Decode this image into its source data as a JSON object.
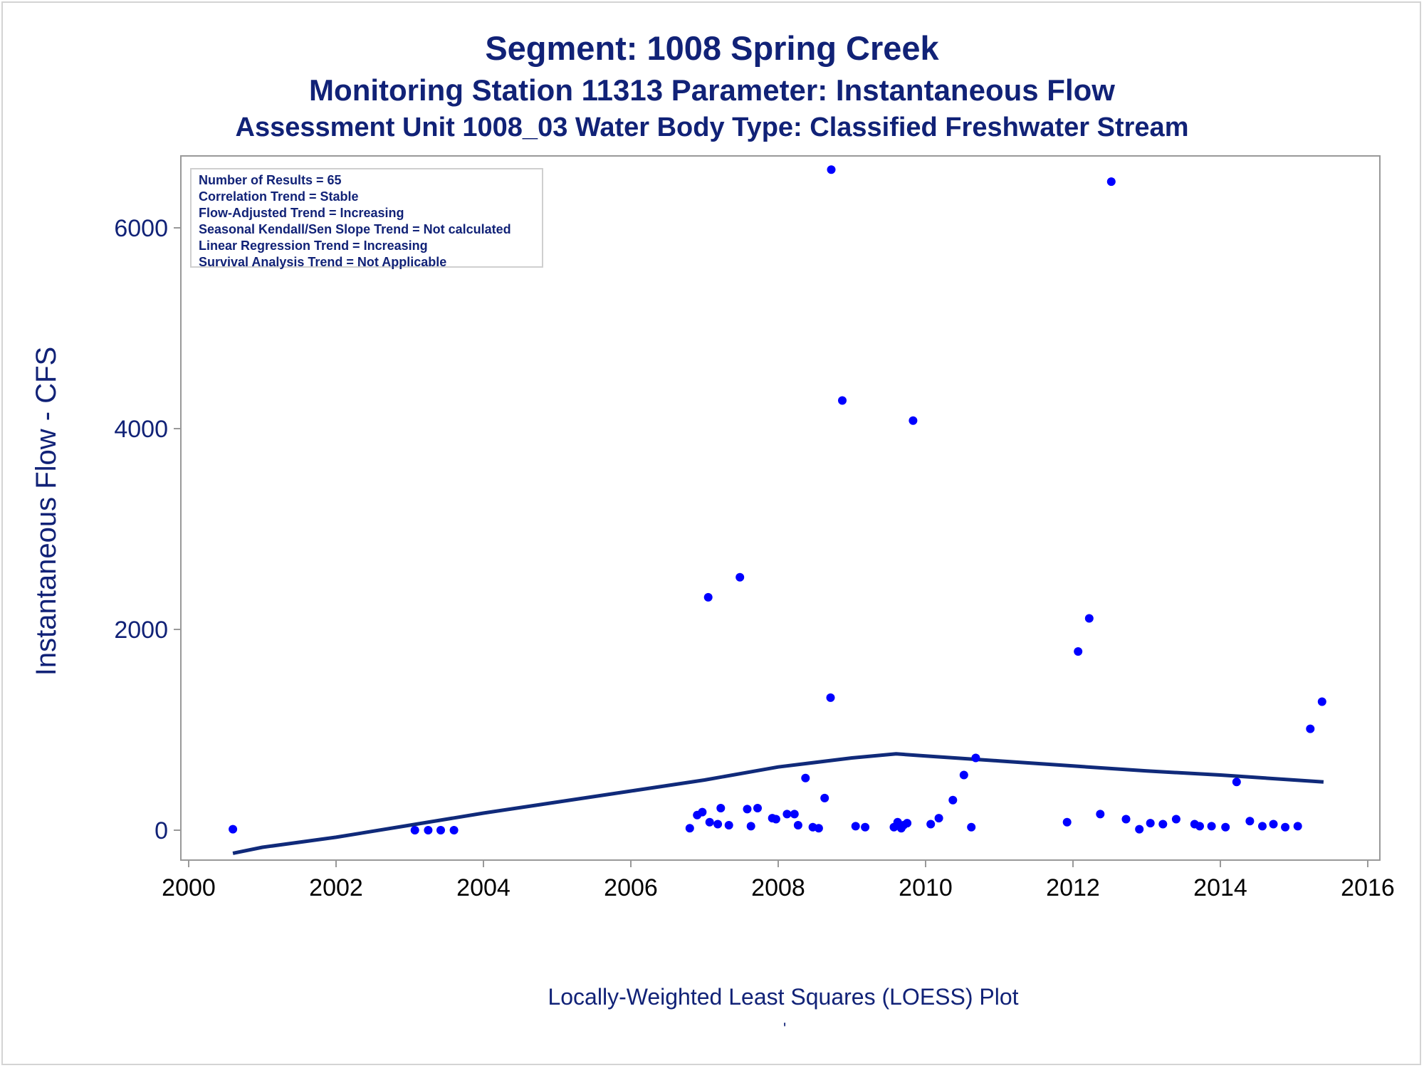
{
  "titles": {
    "line1": "Segment: 1008  Spring Creek",
    "line2": "Monitoring Station 11313 Parameter: Instantaneous Flow",
    "line3": "Assessment Unit 1008_03   Water Body Type: Classified Freshwater Stream"
  },
  "stats": [
    "Number of Results = 65",
    "Correlation Trend = Stable",
    "Flow-Adjusted Trend = Increasing",
    "Seasonal Kendall/Sen Slope Trend = Not calculated",
    "Linear Regression Trend = Increasing",
    "Survival Analysis Trend = Not Applicable"
  ],
  "caption": "Locally-Weighted Least Squares (LOESS) Plot",
  "caption_mark": "'",
  "colors": {
    "points": "#0000ff",
    "loess": "#102a7a",
    "text": "#112277",
    "axis": "#999999"
  },
  "chart_data": {
    "type": "scatter",
    "ylabel": "Instantaneous Flow - CFS",
    "xlabel": "",
    "xlim": [
      2000,
      2016
    ],
    "ylim": [
      -300,
      6700
    ],
    "x_ticks": [
      2000,
      2002,
      2004,
      2006,
      2008,
      2010,
      2012,
      2014,
      2016
    ],
    "y_ticks": [
      0,
      2000,
      4000,
      6000
    ],
    "grid": false,
    "series": [
      {
        "kind": "points",
        "x": [
          2000.6,
          2003.07,
          2003.25,
          2003.42,
          2003.6,
          2006.8,
          2006.9,
          2006.97,
          2007.07,
          2007.05,
          2007.18,
          2007.22,
          2007.33,
          2007.48,
          2007.58,
          2007.63,
          2007.72,
          2007.92,
          2007.97,
          2008.12,
          2008.22,
          2008.27,
          2008.37,
          2008.47,
          2008.55,
          2008.63,
          2008.72,
          2008.71,
          2008.87,
          2009.05,
          2009.18,
          2009.57,
          2009.62,
          2009.67,
          2009.7,
          2009.75,
          2009.83,
          2010.07,
          2010.18,
          2010.37,
          2010.52,
          2010.62,
          2010.68,
          2011.92,
          2012.07,
          2012.22,
          2012.37,
          2012.52,
          2012.72,
          2012.9,
          2013.05,
          2013.22,
          2013.4,
          2013.65,
          2013.72,
          2013.88,
          2014.07,
          2014.22,
          2014.4,
          2014.57,
          2014.72,
          2014.88,
          2015.05,
          2015.22,
          2015.38
        ],
        "y": [
          10,
          0,
          0,
          0,
          0,
          20,
          150,
          180,
          80,
          2320,
          60,
          220,
          50,
          2520,
          210,
          40,
          220,
          120,
          110,
          160,
          160,
          50,
          520,
          30,
          20,
          320,
          6580,
          1320,
          4280,
          40,
          30,
          30,
          80,
          20,
          50,
          70,
          4080,
          60,
          120,
          300,
          550,
          30,
          720,
          80,
          1780,
          2110,
          160,
          6460,
          110,
          10,
          70,
          60,
          110,
          60,
          40,
          40,
          30,
          480,
          90,
          40,
          60,
          30,
          40,
          1010,
          1280
        ]
      },
      {
        "kind": "loess",
        "x": [
          2000.6,
          2001,
          2002,
          2003,
          2004,
          2005,
          2006,
          2007,
          2008,
          2009,
          2009.6,
          2010,
          2011,
          2012,
          2013,
          2014,
          2015,
          2015.4
        ],
        "y": [
          -230,
          -170,
          -70,
          50,
          170,
          280,
          390,
          500,
          630,
          720,
          760,
          740,
          690,
          640,
          590,
          550,
          500,
          480
        ]
      }
    ]
  }
}
